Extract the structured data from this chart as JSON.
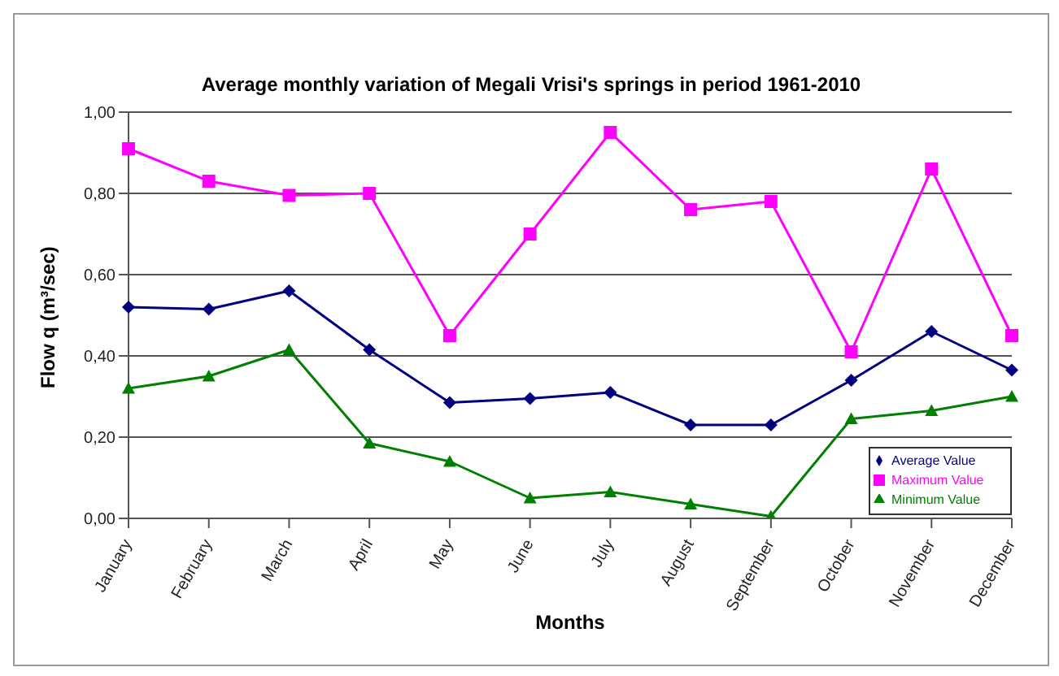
{
  "chart_data": {
    "type": "line",
    "title": "Average monthly variation of Megali Vrisi's springs in period 1961-2010",
    "xlabel": "Months",
    "ylabel": "Flow q (m³/sec)",
    "categories": [
      "January",
      "February",
      "March",
      "April",
      "May",
      "June",
      "July",
      "August",
      "September",
      "October",
      "November",
      "December"
    ],
    "series": [
      {
        "name": "Average Value",
        "color": "#000080",
        "marker": "diamond",
        "values": [
          0.52,
          0.515,
          0.56,
          0.415,
          0.285,
          0.295,
          0.31,
          0.23,
          0.23,
          0.34,
          0.46,
          0.365
        ]
      },
      {
        "name": "Maximum Value",
        "color": "#ff00ff",
        "marker": "square",
        "values": [
          0.91,
          0.83,
          0.795,
          0.8,
          0.45,
          0.7,
          0.95,
          0.76,
          0.78,
          0.41,
          0.86,
          0.45
        ]
      },
      {
        "name": "Minimum Value",
        "color": "#008000",
        "marker": "triangle",
        "values": [
          0.32,
          0.35,
          0.415,
          0.185,
          0.14,
          0.05,
          0.065,
          0.035,
          0.005,
          0.245,
          0.265,
          0.3
        ]
      }
    ],
    "ylim": [
      0,
      1
    ],
    "yticks": [
      {
        "value": 0,
        "label": "0,00"
      },
      {
        "value": 0.2,
        "label": "0,20"
      },
      {
        "value": 0.4,
        "label": "0,40"
      },
      {
        "value": 0.6,
        "label": "0,60"
      },
      {
        "value": 0.8,
        "label": "0,80"
      },
      {
        "value": 1,
        "label": "1,00"
      }
    ],
    "grid": "y",
    "legend": "bottom right",
    "line_style": "solid"
  }
}
